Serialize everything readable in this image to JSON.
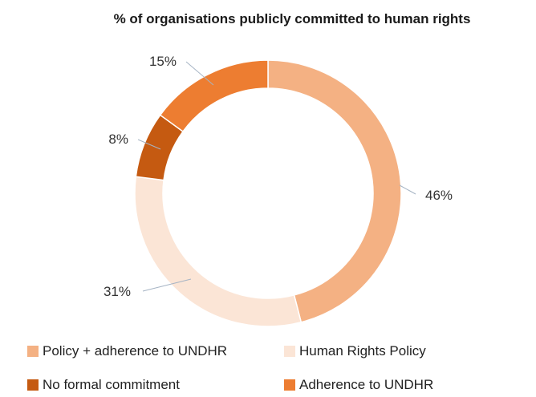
{
  "chart_data": {
    "type": "pie",
    "donut": true,
    "title": "% of organisations publicly committed to human rights",
    "slices": [
      {
        "label": "Policy + adherence to UNDHR",
        "value": 46,
        "display": "46%",
        "color": "#f4b183"
      },
      {
        "label": "Human Rights Policy",
        "value": 31,
        "display": "31%",
        "color": "#fbe5d6"
      },
      {
        "label": "No formal commitment",
        "value": 8,
        "display": "8%",
        "color": "#c55a11"
      },
      {
        "label": "Adherence to UNDHR",
        "value": 15,
        "display": "15%",
        "color": "#ed7d31"
      }
    ],
    "legend_position": "bottom"
  }
}
